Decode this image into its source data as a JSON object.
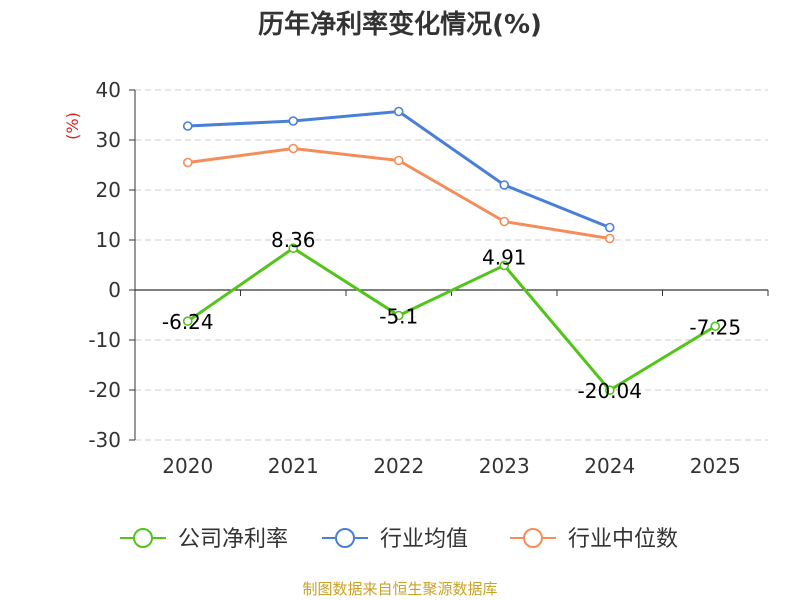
{
  "chart_data": {
    "type": "line",
    "title": "历年净利率变化情况(%)",
    "ylabel": "(%)",
    "xlabel": "",
    "ylim": [
      -30,
      40
    ],
    "yticks": [
      40,
      30,
      20,
      10,
      0,
      -10,
      -20,
      -30
    ],
    "categories": [
      "2020",
      "2021",
      "2022",
      "2023",
      "2024",
      "2025"
    ],
    "grid": true,
    "legend_position": "bottom",
    "series": [
      {
        "name": "公司净利率",
        "color": "#52c41a",
        "values": [
          -6.24,
          8.36,
          -5.1,
          4.91,
          -20.04,
          -7.25
        ],
        "labels": [
          "-6.24",
          "8.36",
          "-5.1",
          "4.91",
          "-20.04",
          "-7.25"
        ]
      },
      {
        "name": "行业均值",
        "color": "#4a7fd8",
        "values": [
          32.8,
          33.8,
          35.7,
          21.0,
          12.5,
          null
        ]
      },
      {
        "name": "行业中位数",
        "color": "#f58d5a",
        "values": [
          25.5,
          28.3,
          25.9,
          13.7,
          10.3,
          null
        ]
      }
    ]
  },
  "source": "制图数据来自恒生聚源数据库"
}
